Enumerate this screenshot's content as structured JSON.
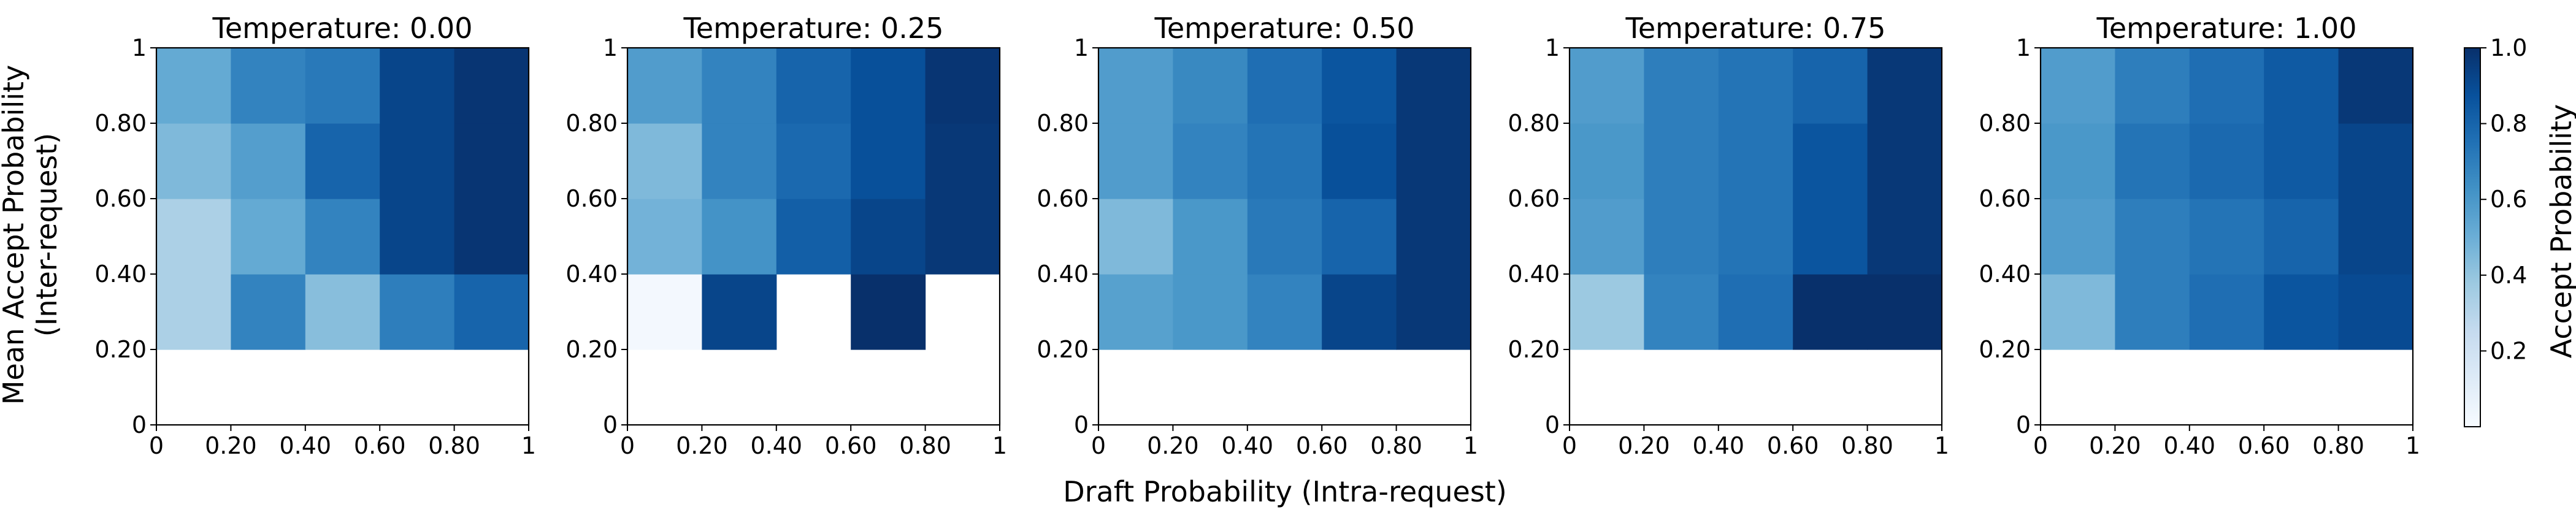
{
  "figure": {
    "xlabel": "Draft Probability (Intra-request)",
    "ylabel_lines": [
      "Mean Accept Probability",
      "(Inter-request)"
    ],
    "colorbar_label": "Accept Probability",
    "colorbar_ticks": [
      "0.2",
      "0.4",
      "0.6",
      "0.8",
      "1.0"
    ],
    "colorbar_tick_values": [
      0.2,
      0.4,
      0.6,
      0.8,
      1.0
    ],
    "colormap": "Blues",
    "colormap_stops": [
      "#f7fbff",
      "#deebf7",
      "#c6dbef",
      "#9ecae1",
      "#6baed6",
      "#4292c6",
      "#2171b5",
      "#08519c",
      "#08306b"
    ]
  },
  "chart_data": [
    {
      "type": "heatmap",
      "title": "Temperature: 0.00",
      "x_tick_labels": [
        "0",
        "0.20",
        "0.40",
        "0.60",
        "0.80",
        "1"
      ],
      "y_tick_labels": [
        "0",
        "0.20",
        "0.40",
        "0.60",
        "0.80",
        "1"
      ],
      "xlim": [
        0,
        1
      ],
      "ylim": [
        0,
        1
      ],
      "clim": [
        0,
        1
      ],
      "x_bins": [
        0,
        0.2,
        0.4,
        0.6,
        0.8,
        1.0
      ],
      "y_bins": [
        0,
        0.2,
        0.4,
        0.6,
        0.8,
        1.0
      ],
      "values": [
        [
          null,
          null,
          null,
          null,
          null
        ],
        [
          0.33,
          0.68,
          0.43,
          0.7,
          0.8
        ],
        [
          0.33,
          0.52,
          0.68,
          0.92,
          0.98
        ],
        [
          0.45,
          0.57,
          0.8,
          0.92,
          0.98
        ],
        [
          0.52,
          0.68,
          0.72,
          0.92,
          0.98
        ]
      ]
    },
    {
      "type": "heatmap",
      "title": "Temperature: 0.25",
      "x_tick_labels": [
        "0",
        "0.20",
        "0.40",
        "0.60",
        "0.80",
        "1"
      ],
      "y_tick_labels": [
        "0",
        "0.20",
        "0.40",
        "0.60",
        "0.80",
        "1"
      ],
      "xlim": [
        0,
        1
      ],
      "ylim": [
        0,
        1
      ],
      "clim": [
        0,
        1
      ],
      "x_bins": [
        0,
        0.2,
        0.4,
        0.6,
        0.8,
        1.0
      ],
      "y_bins": [
        0,
        0.2,
        0.4,
        0.6,
        0.8,
        1.0
      ],
      "values": [
        [
          null,
          null,
          null,
          null,
          null
        ],
        [
          0.02,
          0.92,
          null,
          1.0,
          null
        ],
        [
          0.48,
          0.62,
          0.82,
          0.92,
          0.97
        ],
        [
          0.45,
          0.68,
          0.78,
          0.88,
          0.97
        ],
        [
          0.58,
          0.68,
          0.8,
          0.88,
          0.98
        ]
      ]
    },
    {
      "type": "heatmap",
      "title": "Temperature: 0.50",
      "x_tick_labels": [
        "0",
        "0.20",
        "0.40",
        "0.60",
        "0.80",
        "1"
      ],
      "y_tick_labels": [
        "0",
        "0.20",
        "0.40",
        "0.60",
        "0.80",
        "1"
      ],
      "xlim": [
        0,
        1
      ],
      "ylim": [
        0,
        1
      ],
      "clim": [
        0,
        1
      ],
      "x_bins": [
        0,
        0.2,
        0.4,
        0.6,
        0.8,
        1.0
      ],
      "y_bins": [
        0,
        0.2,
        0.4,
        0.6,
        0.8,
        1.0
      ],
      "values": [
        [
          null,
          null,
          null,
          null,
          null
        ],
        [
          0.56,
          0.6,
          0.68,
          0.92,
          0.97
        ],
        [
          0.45,
          0.6,
          0.72,
          0.8,
          0.97
        ],
        [
          0.58,
          0.68,
          0.74,
          0.88,
          0.97
        ],
        [
          0.58,
          0.66,
          0.76,
          0.86,
          0.97
        ]
      ]
    },
    {
      "type": "heatmap",
      "title": "Temperature: 0.75",
      "x_tick_labels": [
        "0",
        "0.20",
        "0.40",
        "0.60",
        "0.80",
        "1"
      ],
      "y_tick_labels": [
        "0",
        "0.20",
        "0.40",
        "0.60",
        "0.80",
        "1"
      ],
      "xlim": [
        0,
        1
      ],
      "ylim": [
        0,
        1
      ],
      "clim": [
        0,
        1
      ],
      "x_bins": [
        0,
        0.2,
        0.4,
        0.6,
        0.8,
        1.0
      ],
      "y_bins": [
        0,
        0.2,
        0.4,
        0.6,
        0.8,
        1.0
      ],
      "values": [
        [
          null,
          null,
          null,
          null,
          null
        ],
        [
          0.38,
          0.68,
          0.76,
          1.0,
          1.0
        ],
        [
          0.58,
          0.7,
          0.74,
          0.86,
          0.97
        ],
        [
          0.6,
          0.7,
          0.74,
          0.86,
          0.97
        ],
        [
          0.58,
          0.7,
          0.74,
          0.8,
          0.97
        ]
      ]
    },
    {
      "type": "heatmap",
      "title": "Temperature: 1.00",
      "x_tick_labels": [
        "0",
        "0.20",
        "0.40",
        "0.60",
        "0.80",
        "1"
      ],
      "y_tick_labels": [
        "0",
        "0.20",
        "0.40",
        "0.60",
        "0.80",
        "1"
      ],
      "xlim": [
        0,
        1
      ],
      "ylim": [
        0,
        1
      ],
      "clim": [
        0,
        1
      ],
      "x_bins": [
        0,
        0.2,
        0.4,
        0.6,
        0.8,
        1.0
      ],
      "y_bins": [
        0,
        0.2,
        0.4,
        0.6,
        0.8,
        1.0
      ],
      "values": [
        [
          null,
          null,
          null,
          null,
          null
        ],
        [
          0.45,
          0.7,
          0.76,
          0.86,
          0.9
        ],
        [
          0.58,
          0.7,
          0.74,
          0.8,
          0.92
        ],
        [
          0.6,
          0.74,
          0.78,
          0.84,
          0.92
        ],
        [
          0.58,
          0.7,
          0.76,
          0.84,
          0.97
        ]
      ]
    }
  ]
}
